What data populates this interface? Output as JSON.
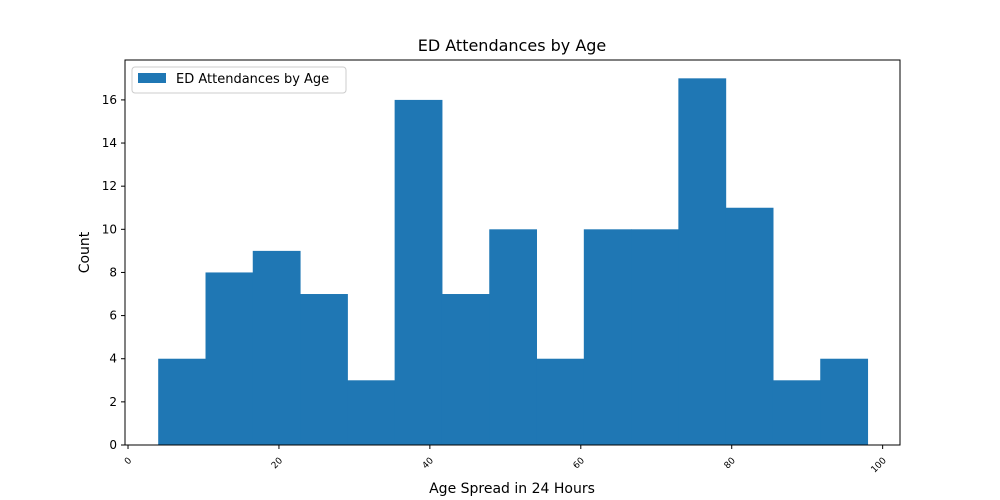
{
  "chart_data": {
    "type": "bar",
    "title": "ED Attendances by Age",
    "xlabel": "Age Spread in 24 Hours",
    "ylabel": "Count",
    "legend": {
      "label": "ED Attendances by Age",
      "placement": "upper-left"
    },
    "xlim": [
      -0.4,
      102.3
    ],
    "ylim": [
      0,
      17.85
    ],
    "x_ticks": [
      0,
      20,
      40,
      60,
      80,
      100
    ],
    "y_ticks": [
      0,
      2,
      4,
      6,
      8,
      10,
      12,
      14,
      16
    ],
    "bin_edges": [
      4.0,
      10.27,
      16.53,
      22.8,
      29.07,
      35.33,
      41.6,
      47.87,
      54.13,
      60.4,
      66.67,
      72.93,
      79.2,
      85.47,
      91.73,
      98.0
    ],
    "values": [
      4,
      8,
      9,
      7,
      3,
      16,
      7,
      10,
      4,
      10,
      10,
      17,
      11,
      3,
      4
    ],
    "bar_color": "#1f77b4",
    "grid": false
  }
}
